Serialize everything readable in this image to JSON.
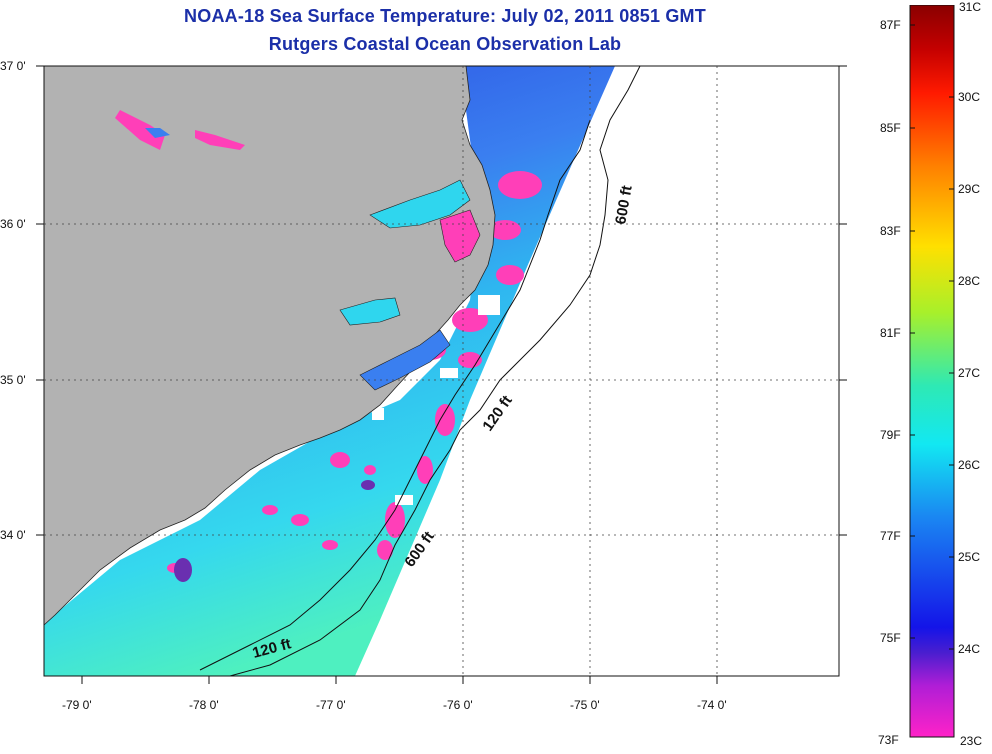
{
  "title_line1": "NOAA-18 Sea Surface Temperature:  July 02, 2011 0851 GMT",
  "title_line2": "Rutgers Coastal Ocean Observation Lab",
  "lat_labels": [
    "37 0'",
    "36 0'",
    "35 0'",
    "34 0'"
  ],
  "lon_labels": [
    "-79 0'",
    "-78 0'",
    "-77 0'",
    "-76 0'",
    "-75 0'",
    "-74 0'"
  ],
  "contour_labels": [
    "600 ft",
    "120 ft",
    "600 ft",
    "120 ft"
  ],
  "colorbar": {
    "f_labels": [
      "87F",
      "85F",
      "83F",
      "81F",
      "79F",
      "77F",
      "75F",
      "73F"
    ],
    "c_labels": [
      "31C",
      "30C",
      "29C",
      "28C",
      "27C",
      "26C",
      "25C",
      "24C",
      "23C"
    ]
  },
  "colors": {
    "land": "#b2b2b2",
    "title": "#1b2fa8",
    "ocean_main": "#2fd6ee",
    "ocean_cool": "#2a55e6",
    "cold_patch": "#ff2fb4",
    "no_data": "#ffffff"
  }
}
